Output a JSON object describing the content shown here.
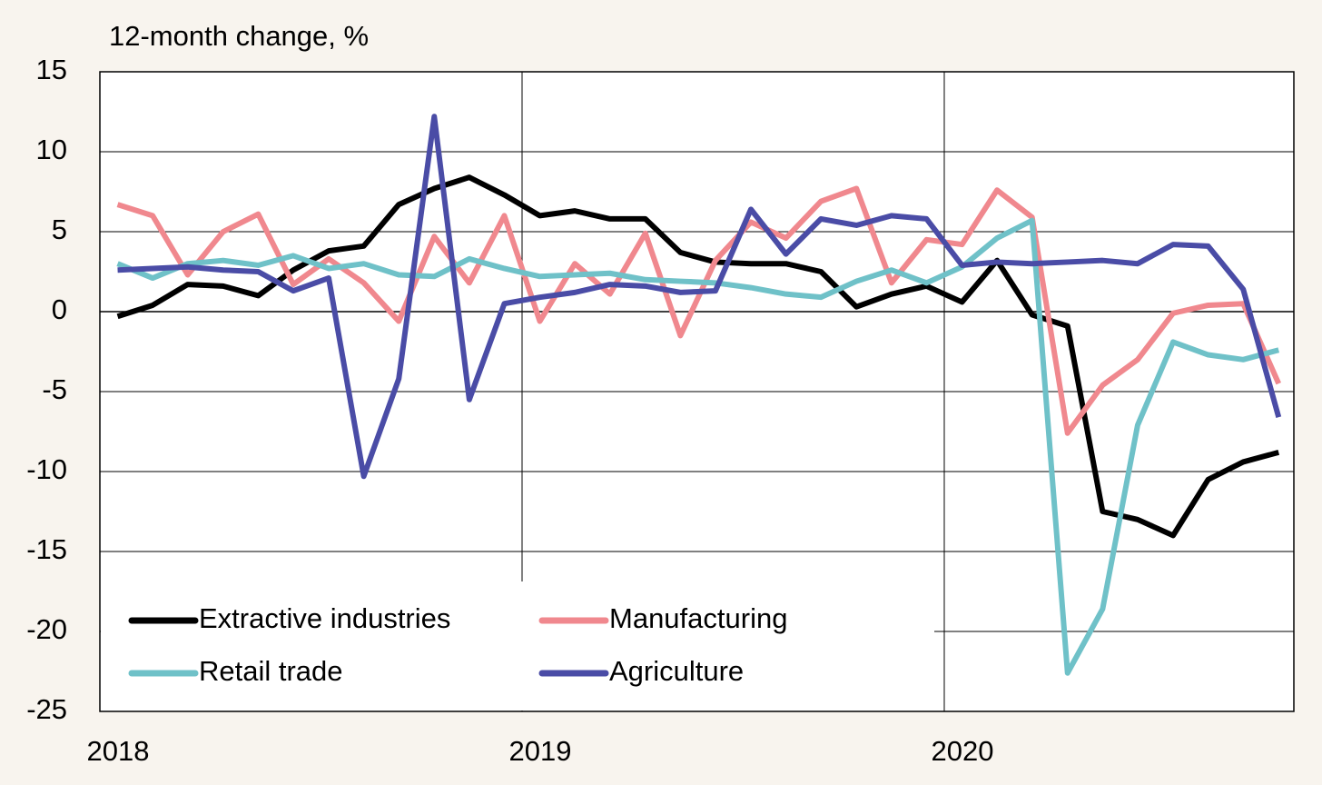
{
  "chart_data": {
    "type": "line",
    "y_label": "12-month change, %",
    "x": [
      2018.042,
      2018.125,
      2018.208,
      2018.292,
      2018.375,
      2018.458,
      2018.542,
      2018.625,
      2018.708,
      2018.792,
      2018.875,
      2018.958,
      2019.042,
      2019.125,
      2019.208,
      2019.292,
      2019.375,
      2019.458,
      2019.542,
      2019.625,
      2019.708,
      2019.792,
      2019.875,
      2019.958,
      2020.042,
      2020.125,
      2020.208,
      2020.292,
      2020.375,
      2020.458,
      2020.542,
      2020.625,
      2020.708,
      2020.792
    ],
    "series": [
      {
        "name": "Extractive industries",
        "color": "#000000",
        "values": [
          -0.3,
          0.4,
          1.7,
          1.6,
          1.0,
          2.6,
          3.8,
          4.1,
          6.7,
          7.7,
          8.4,
          7.3,
          6.0,
          6.3,
          5.8,
          5.8,
          3.7,
          3.1,
          3.0,
          3.0,
          2.5,
          0.3,
          1.1,
          1.6,
          0.6,
          3.2,
          -0.2,
          -0.9,
          -12.5,
          -13.0,
          -14.0,
          -10.5,
          -9.4,
          -8.8
        ]
      },
      {
        "name": "Manufacturing",
        "color": "#f0888e",
        "values": [
          6.7,
          6.0,
          2.3,
          5.0,
          6.1,
          1.7,
          3.3,
          1.8,
          -0.6,
          4.7,
          1.8,
          6.0,
          -0.6,
          3.0,
          1.1,
          4.9,
          -1.5,
          3.2,
          5.6,
          4.6,
          6.9,
          7.7,
          1.8,
          4.5,
          4.2,
          7.6,
          5.9,
          -7.6,
          -4.6,
          -3.0,
          -0.1,
          0.4,
          0.5,
          -4.5
        ]
      },
      {
        "name": "Retail trade",
        "color": "#6fc1c8",
        "values": [
          3.0,
          2.1,
          3.0,
          3.2,
          2.9,
          3.5,
          2.7,
          3.0,
          2.3,
          2.2,
          3.3,
          2.7,
          2.2,
          2.3,
          2.4,
          2.0,
          1.9,
          1.8,
          1.5,
          1.1,
          0.9,
          1.9,
          2.6,
          1.8,
          2.8,
          4.6,
          5.7,
          -22.6,
          -18.6,
          -7.1,
          -1.9,
          -2.7,
          -3.0,
          -2.4
        ]
      },
      {
        "name": "Agriculture",
        "color": "#4a4ca6",
        "values": [
          2.6,
          2.7,
          2.8,
          2.6,
          2.5,
          1.3,
          2.1,
          -10.3,
          -4.2,
          12.2,
          -5.5,
          0.5,
          0.9,
          1.2,
          1.7,
          1.6,
          1.2,
          1.3,
          6.4,
          3.6,
          5.8,
          5.4,
          6.0,
          5.8,
          2.9,
          3.1,
          3.0,
          3.1,
          3.2,
          3.0,
          4.2,
          4.1,
          1.4,
          -6.6
        ]
      }
    ],
    "xlim": [
      2018,
      2020.828
    ],
    "xticks": [
      2018,
      2019,
      2020
    ],
    "ylim": [
      -25,
      15
    ],
    "yticks": [
      -25,
      -20,
      -15,
      -10,
      -5,
      0,
      5,
      10,
      15
    ],
    "grid": true,
    "legend": "lower left"
  }
}
